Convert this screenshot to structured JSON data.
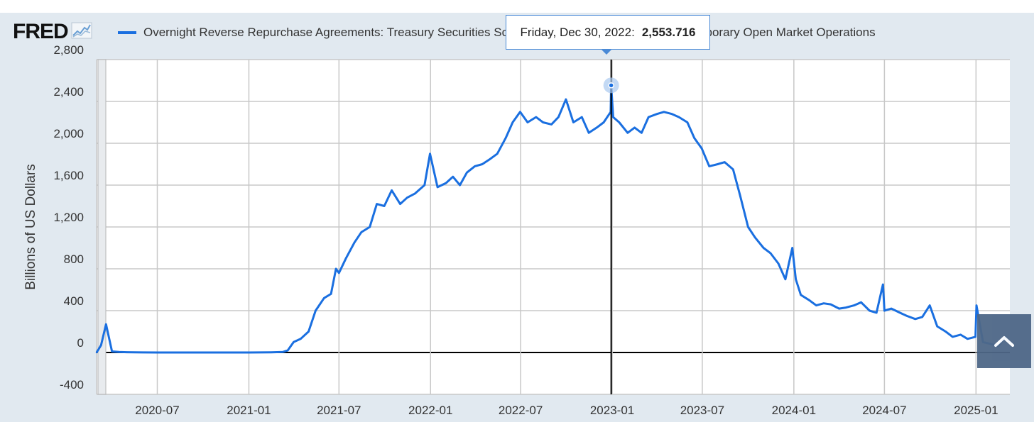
{
  "logo": {
    "text": "FRED",
    "icon": "trend-chart-icon"
  },
  "legend": {
    "label": "Overnight Reverse Repurchase Agreements: Treasury Securities Sold by the Federal Reserve in the Temporary Open Market Operations",
    "color": "#1a6fe0"
  },
  "tooltip": {
    "date": "Friday, Dec 30, 2022:",
    "value": "2,553.716"
  },
  "scroll_button": {
    "icon": "chevron-up-icon"
  },
  "colors": {
    "series": "#1a6fe0",
    "grid": "#c8c8c8",
    "panel": "#e1e9f0",
    "axis": "#000000"
  },
  "chart_data": {
    "type": "line",
    "ylabel": "Billions of US Dollars",
    "ylim": [
      -400,
      2800
    ],
    "yticks": [
      2800,
      2400,
      2000,
      1600,
      1200,
      800,
      400,
      0,
      -400
    ],
    "ytick_labels": [
      "2,800",
      "2,400",
      "2,000",
      "1,600",
      "1,200",
      "800",
      "400",
      "0",
      "-400"
    ],
    "xlim": [
      "2020-03-01",
      "2025-03-10"
    ],
    "xticks": [
      "2020-07",
      "2021-01",
      "2021-07",
      "2022-01",
      "2022-07",
      "2023-01",
      "2023-07",
      "2024-01",
      "2024-07",
      "2025-01"
    ],
    "grid": true,
    "legend_position": "top",
    "highlight": {
      "x": "2022-12-30",
      "y": 2553.716
    },
    "series": [
      {
        "name": "Overnight Reverse Repurchase Agreements: Treasury Securities Sold by the Federal Reserve in the Temporary Open Market Operations",
        "x": [
          "2020-03-01",
          "2020-03-10",
          "2020-03-20",
          "2020-04-01",
          "2020-04-15",
          "2020-05-01",
          "2020-06-01",
          "2020-07-01",
          "2020-09-01",
          "2020-11-01",
          "2021-01-01",
          "2021-02-15",
          "2021-03-10",
          "2021-03-20",
          "2021-04-01",
          "2021-04-15",
          "2021-05-01",
          "2021-05-15",
          "2021-06-01",
          "2021-06-15",
          "2021-06-25",
          "2021-07-01",
          "2021-07-15",
          "2021-08-01",
          "2021-08-15",
          "2021-09-01",
          "2021-09-15",
          "2021-09-30",
          "2021-10-15",
          "2021-11-01",
          "2021-11-15",
          "2021-12-01",
          "2021-12-20",
          "2021-12-31",
          "2022-01-15",
          "2022-02-01",
          "2022-02-15",
          "2022-03-01",
          "2022-03-15",
          "2022-03-31",
          "2022-04-15",
          "2022-05-01",
          "2022-05-15",
          "2022-06-01",
          "2022-06-15",
          "2022-06-30",
          "2022-07-15",
          "2022-08-01",
          "2022-08-15",
          "2022-09-01",
          "2022-09-15",
          "2022-09-30",
          "2022-10-15",
          "2022-11-01",
          "2022-11-15",
          "2022-12-01",
          "2022-12-15",
          "2022-12-29",
          "2022-12-30",
          "2023-01-03",
          "2023-01-15",
          "2023-02-01",
          "2023-02-15",
          "2023-03-01",
          "2023-03-15",
          "2023-04-01",
          "2023-04-15",
          "2023-05-01",
          "2023-05-15",
          "2023-06-01",
          "2023-06-15",
          "2023-06-30",
          "2023-07-15",
          "2023-08-01",
          "2023-08-15",
          "2023-09-01",
          "2023-09-15",
          "2023-10-01",
          "2023-10-15",
          "2023-11-01",
          "2023-11-15",
          "2023-12-01",
          "2023-12-15",
          "2023-12-29",
          "2024-01-05",
          "2024-01-15",
          "2024-02-01",
          "2024-02-15",
          "2024-03-01",
          "2024-03-15",
          "2024-04-01",
          "2024-04-15",
          "2024-05-01",
          "2024-05-15",
          "2024-06-01",
          "2024-06-15",
          "2024-06-28",
          "2024-07-01",
          "2024-07-15",
          "2024-08-01",
          "2024-08-15",
          "2024-09-01",
          "2024-09-15",
          "2024-09-30",
          "2024-10-15",
          "2024-11-01",
          "2024-11-15",
          "2024-12-01",
          "2024-12-15",
          "2024-12-31",
          "2025-01-02",
          "2025-01-15",
          "2025-02-01",
          "2025-02-15",
          "2025-03-01",
          "2025-03-10"
        ],
        "y": [
          0,
          70,
          270,
          10,
          5,
          3,
          1,
          0,
          0,
          0,
          0,
          2,
          5,
          20,
          100,
          130,
          200,
          400,
          520,
          560,
          800,
          760,
          900,
          1050,
          1150,
          1200,
          1420,
          1400,
          1550,
          1420,
          1480,
          1520,
          1600,
          1900,
          1580,
          1620,
          1680,
          1600,
          1720,
          1780,
          1800,
          1850,
          1900,
          2050,
          2200,
          2300,
          2200,
          2250,
          2200,
          2180,
          2250,
          2420,
          2200,
          2250,
          2100,
          2150,
          2200,
          2300,
          2553.716,
          2250,
          2200,
          2100,
          2150,
          2100,
          2250,
          2280,
          2300,
          2280,
          2250,
          2200,
          2050,
          1950,
          1780,
          1800,
          1820,
          1750,
          1500,
          1200,
          1100,
          1000,
          950,
          850,
          700,
          1000,
          700,
          550,
          500,
          450,
          470,
          460,
          420,
          430,
          450,
          480,
          400,
          380,
          650,
          400,
          420,
          380,
          350,
          320,
          340,
          450,
          250,
          200,
          150,
          170,
          130,
          150,
          450,
          100,
          80,
          60,
          150,
          100
        ]
      }
    ]
  }
}
